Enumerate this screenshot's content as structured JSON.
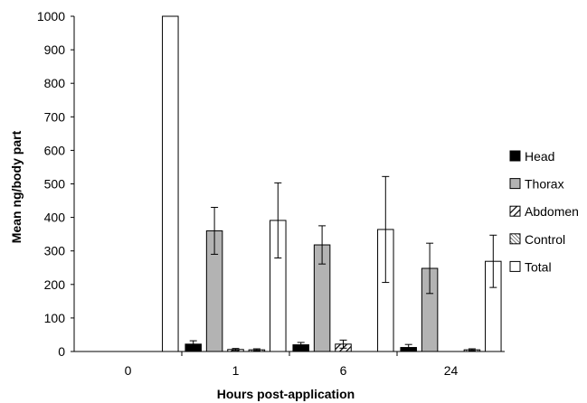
{
  "chart_data": {
    "type": "bar",
    "title": "",
    "xlabel": "Hours post-application",
    "ylabel": "Mean ng/body part",
    "ylim": [
      0,
      1000
    ],
    "yticks": [
      0,
      100,
      200,
      300,
      400,
      500,
      600,
      700,
      800,
      900,
      1000
    ],
    "categories": [
      "0",
      "1",
      "6",
      "24"
    ],
    "legend_position": "right",
    "grid": false,
    "series": [
      {
        "name": "Head",
        "pattern": "solid-black",
        "values": [
          0,
          22,
          20,
          12
        ],
        "errors": [
          0,
          10,
          7,
          9
        ]
      },
      {
        "name": "Thorax",
        "pattern": "solid-gray",
        "values": [
          0,
          360,
          318,
          248
        ],
        "errors": [
          0,
          70,
          57,
          75
        ]
      },
      {
        "name": "Abdomen",
        "pattern": "diagonal-hatch",
        "values": [
          0,
          6,
          22,
          0
        ],
        "errors": [
          0,
          3,
          12,
          0
        ]
      },
      {
        "name": "Control",
        "pattern": "fine-diagonal-hatch",
        "values": [
          0,
          5,
          0,
          5
        ],
        "errors": [
          0,
          3,
          0,
          3
        ]
      },
      {
        "name": "Total",
        "pattern": "white",
        "values": [
          1000,
          391,
          364,
          269
        ],
        "errors": [
          0,
          112,
          158,
          78
        ]
      }
    ],
    "colors": {
      "head": "#000000",
      "thorax": "#b3b3b3",
      "total": "#ffffff",
      "outline": "#000000"
    }
  }
}
